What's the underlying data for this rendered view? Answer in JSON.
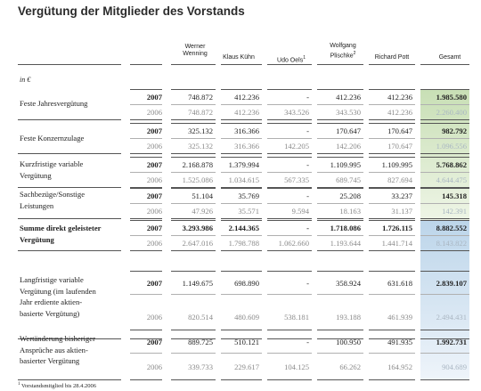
{
  "title": "Vergütung der Mitglieder des Vorstands",
  "unit": "in €",
  "columns": [
    "Werner\nWenning",
    "Klaus Kühn",
    "Udo Oels",
    "Wolfgang\nPlischke",
    "Richard Pott",
    "Gesamt"
  ],
  "col_sup": {
    "udo": "1",
    "plischke": "2"
  },
  "rows": [
    {
      "label": "Feste Jahresvergütung",
      "y2007": "2007",
      "y2006": "2006",
      "v2007": [
        "748.872",
        "412.236",
        "-",
        "412.236",
        "412.236",
        "1.985.580"
      ],
      "v2006": [
        "748.872",
        "412.236",
        "343.526",
        "343.530",
        "412.236",
        "2.260.400"
      ]
    },
    {
      "label": "Feste Konzernzulage",
      "y2007": "2007",
      "y2006": "2006",
      "v2007": [
        "325.132",
        "316.366",
        "-",
        "170.647",
        "170.647",
        "982.792"
      ],
      "v2006": [
        "325.132",
        "316.366",
        "142.205",
        "142.206",
        "170.647",
        "1.096.556"
      ]
    },
    {
      "label": "Kurzfristige variable\nVergütung",
      "y2007": "2007",
      "y2006": "2006",
      "v2007": [
        "2.168.878",
        "1.379.994",
        "-",
        "1.109.995",
        "1.109.995",
        "5.768.862"
      ],
      "v2006": [
        "1.525.086",
        "1.034.615",
        "567.335",
        "689.745",
        "827.694",
        "4.644.475"
      ]
    },
    {
      "label": "Sachbezüge/Sonstige\nLeistungen",
      "y2007": "2007",
      "y2006": "2006",
      "v2007": [
        "51.104",
        "35.769",
        "-",
        "25.208",
        "33.237",
        "145.318"
      ],
      "v2006": [
        "47.926",
        "35.571",
        "9.594",
        "18.163",
        "31.137",
        "142.391"
      ]
    },
    {
      "label": "Summe direkt geleisteter\nVergütung",
      "y2007": "2007",
      "y2006": "2006",
      "v2007": [
        "3.293.986",
        "2.144.365",
        "-",
        "1.718.086",
        "1.726.115",
        "8.882.552"
      ],
      "v2006": [
        "2.647.016",
        "1.798.788",
        "1.062.660",
        "1.193.644",
        "1.441.714",
        "8.143.822"
      ]
    },
    {
      "label": "Langfristige variable\nVergütung (im laufenden\nJahr erdiente aktien-\nbasierte Vergütung)",
      "y2007": "2007",
      "y2006": "2006",
      "v2007": [
        "1.149.675",
        "698.890",
        "-",
        "358.924",
        "631.618",
        "2.839.107"
      ],
      "v2006": [
        "820.514",
        "480.609",
        "538.181",
        "193.188",
        "461.939",
        "2.494.431"
      ]
    },
    {
      "label": "Wertänderung bisheriger\nAnsprüche aus aktien-\nbasierter Vergütung",
      "y2007": "2007",
      "y2006": "2006",
      "v2007": [
        "889.725",
        "510.121",
        "-",
        "100.950",
        "491.935",
        "1.992.731"
      ],
      "v2006": [
        "339.733",
        "229.617",
        "104.125",
        "66.262",
        "164.952",
        "904.689"
      ]
    }
  ],
  "footnote": "Vorstandsmitglied bis 28.4.2006",
  "footnote_sup": "1",
  "colors": {
    "green_top": "#c8dfb5",
    "green_bottom": "#eef5e6",
    "blue_top": "#bcd5ea",
    "blue_bottom": "#eef4fa"
  }
}
